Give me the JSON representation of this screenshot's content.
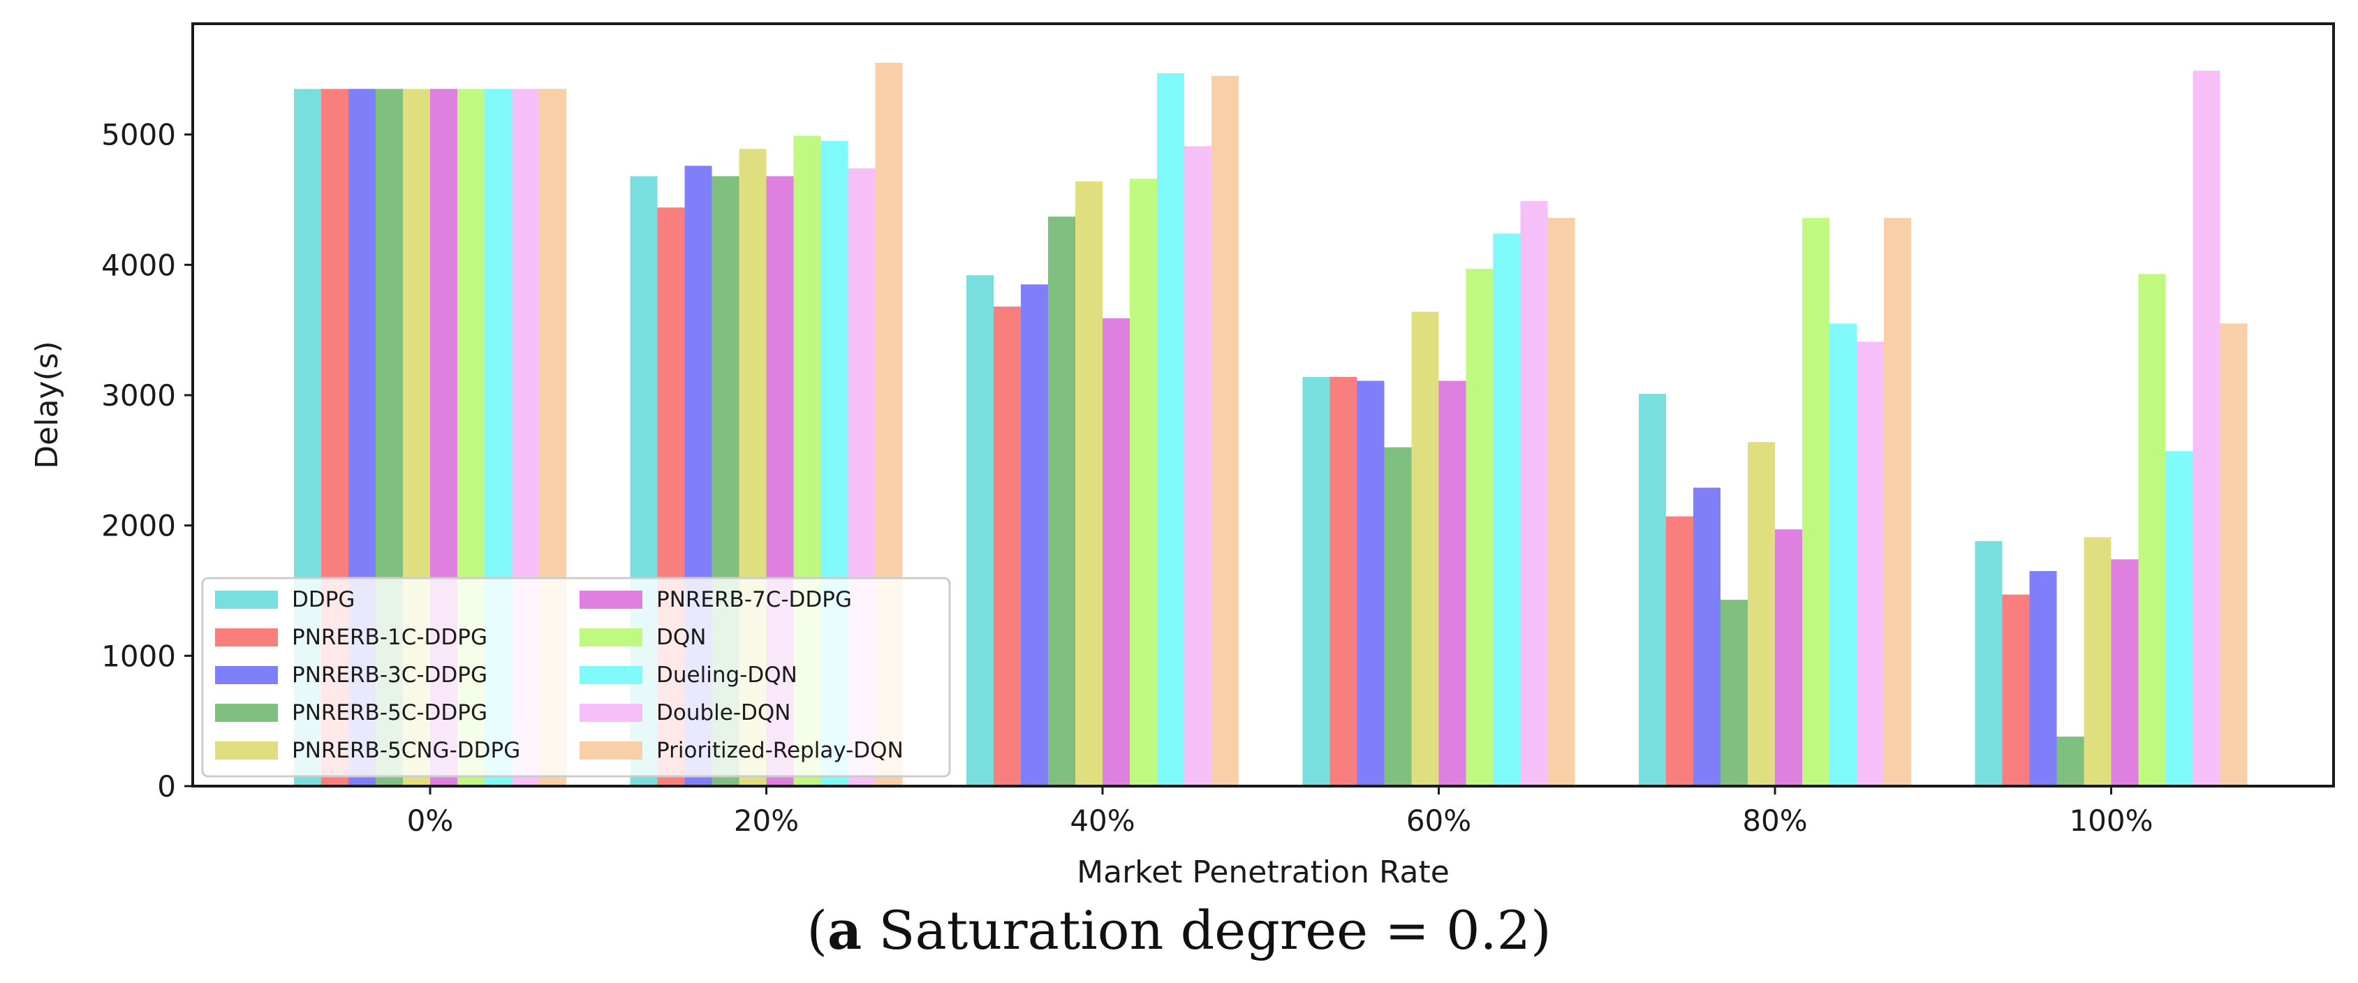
{
  "chart_data": {
    "type": "bar",
    "title": "",
    "xlabel": "Market Penetration Rate",
    "ylabel": "Delay(s)",
    "ylim": [
      0,
      5850
    ],
    "yticks": [
      0,
      1000,
      2000,
      3000,
      4000,
      5000
    ],
    "grid": false,
    "legend_position": "lower-left",
    "categories": [
      "0%",
      "20%",
      "40%",
      "60%",
      "80%",
      "100%"
    ],
    "series": [
      {
        "name": "DDPG",
        "color": "#79dede",
        "values": [
          5350,
          4680,
          3920,
          3140,
          3010,
          1880
        ]
      },
      {
        "name": "PNRERB-1C-DDPG",
        "color": "#f97f7f",
        "values": [
          5350,
          4440,
          3680,
          3140,
          2070,
          1470
        ]
      },
      {
        "name": "PNRERB-3C-DDPG",
        "color": "#7f7ff9",
        "values": [
          5350,
          4760,
          3850,
          3110,
          2290,
          1650
        ]
      },
      {
        "name": "PNRERB-5C-DDPG",
        "color": "#7fbf7f",
        "values": [
          5350,
          4680,
          4370,
          2600,
          1430,
          380
        ]
      },
      {
        "name": "PNRERB-5CNG-DDPG",
        "color": "#dfdf7f",
        "values": [
          5350,
          4890,
          4640,
          3640,
          2640,
          1910
        ]
      },
      {
        "name": "PNRERB-7C-DDPG",
        "color": "#df7fdf",
        "values": [
          5350,
          4680,
          3590,
          3110,
          1970,
          1740
        ]
      },
      {
        "name": "DQN",
        "color": "#bff97f",
        "values": [
          5350,
          4990,
          4660,
          3970,
          4360,
          3930
        ]
      },
      {
        "name": "Dueling-DQN",
        "color": "#7ff9f9",
        "values": [
          5350,
          4950,
          5470,
          4240,
          3550,
          2570
        ]
      },
      {
        "name": "Double-DQN",
        "color": "#f7bff7",
        "values": [
          5350,
          4740,
          4910,
          4490,
          3410,
          5490
        ]
      },
      {
        "name": "Prioritized-Replay-DQN",
        "color": "#f9cfa7",
        "values": [
          5350,
          5550,
          5450,
          4360,
          4360,
          3550
        ]
      }
    ]
  },
  "caption": {
    "label": "a",
    "text": " Saturation degree = 0.2"
  }
}
